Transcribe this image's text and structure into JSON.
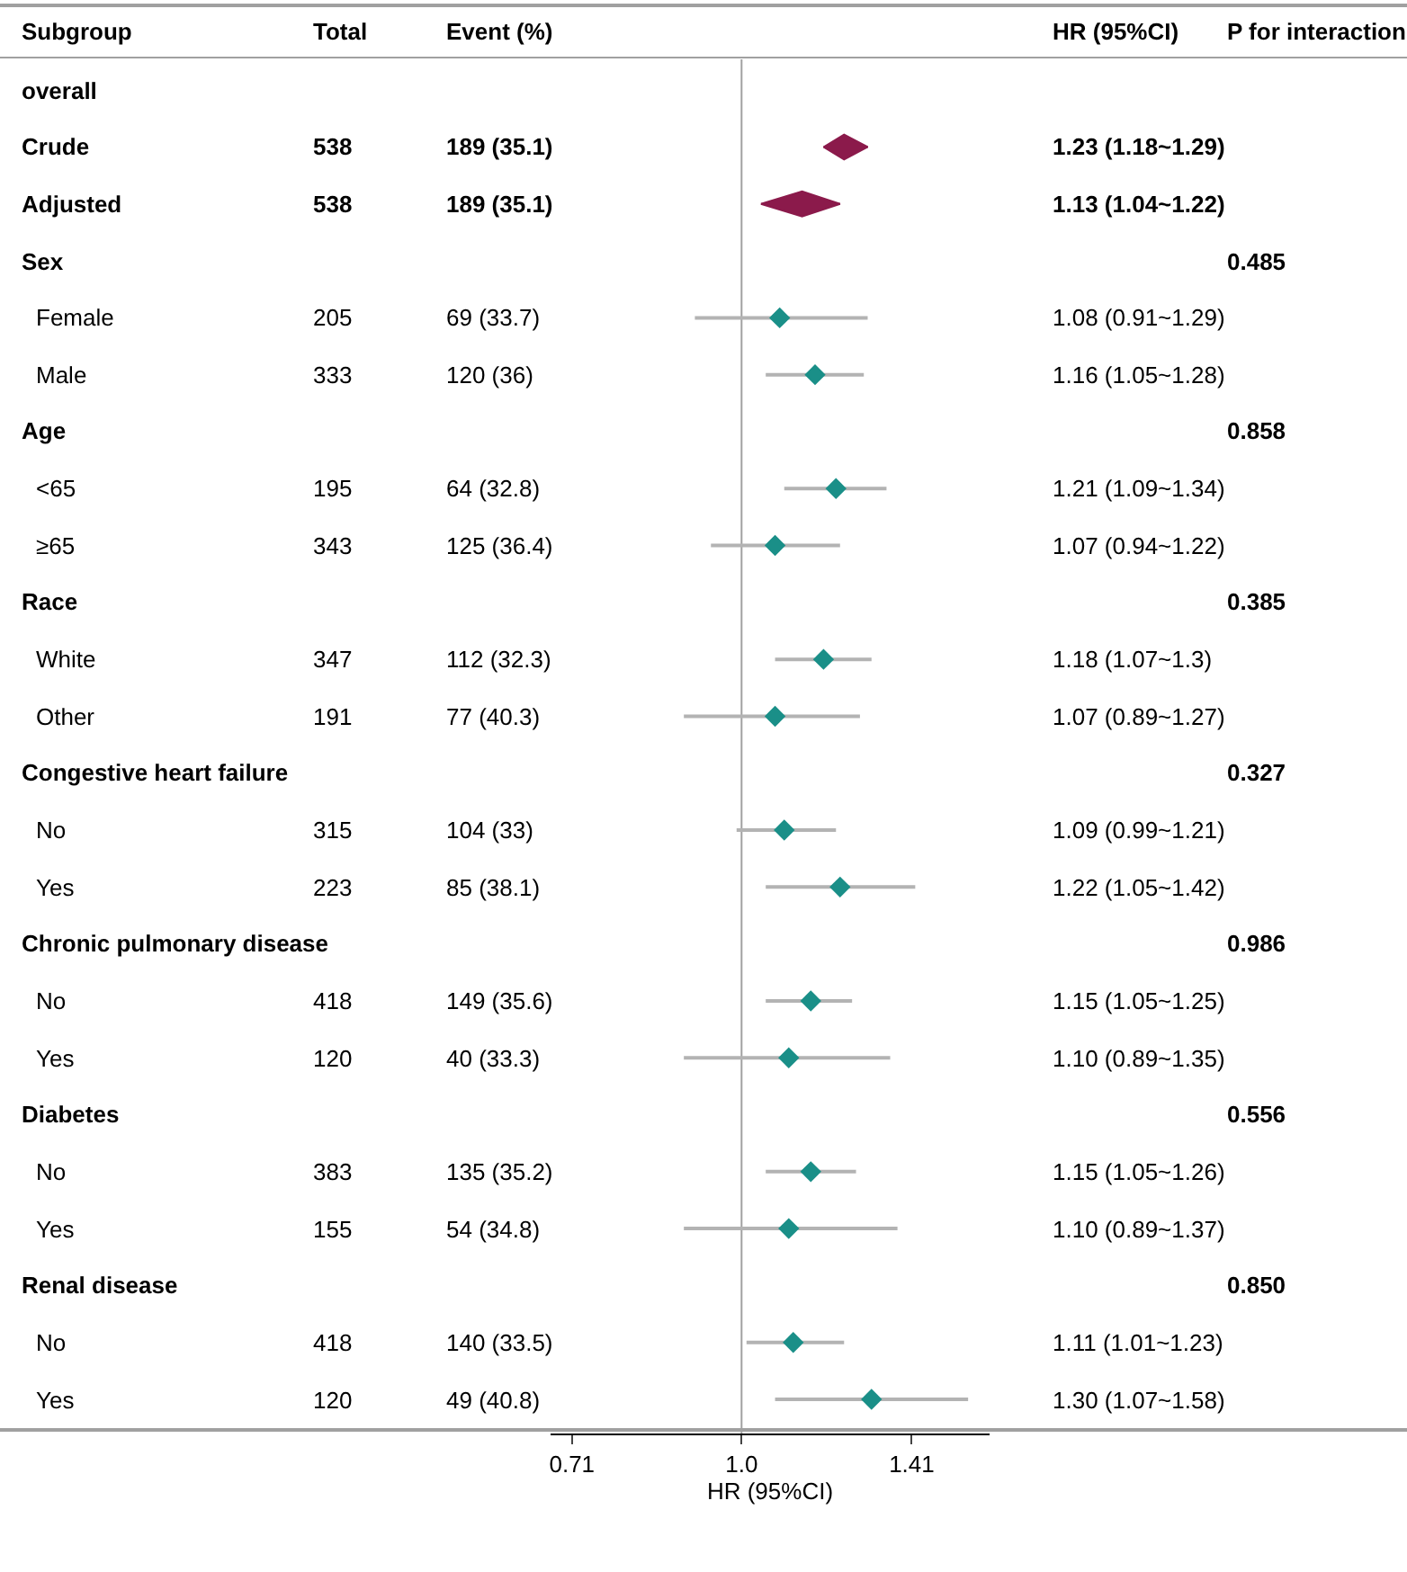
{
  "chart_data": [
    {
      "type": "other",
      "title": "Subgroup",
      "categories": [
        "overall",
        "Crude",
        "Adjusted",
        "Sex",
        "Female",
        "Male",
        "Age",
        "<65",
        "≥65",
        "Race",
        "White",
        "Other",
        "Congestive heart failure",
        "No",
        "Yes",
        "Chronic pulmonary disease",
        "No",
        "Yes",
        "Diabetes",
        "No",
        "Yes",
        "Renal disease",
        "No",
        "Yes"
      ]
    },
    {
      "type": "other",
      "title": "Total",
      "categories": [
        null,
        "538",
        "538",
        null,
        "205",
        "333",
        null,
        "195",
        "343",
        null,
        "347",
        "191",
        null,
        "315",
        "223",
        null,
        "418",
        "120",
        null,
        "383",
        "155",
        null,
        "418",
        "120"
      ]
    },
    {
      "type": "other",
      "title": "Event (%)",
      "categories": [
        null,
        "189 (35.1)",
        "189 (35.1)",
        null,
        "69 (33.7)",
        "120 (36)",
        null,
        "64 (32.8)",
        "125 (36.4)",
        null,
        "112 (32.3)",
        "77 (40.3)",
        null,
        "104 (33)",
        "85 (38.1)",
        null,
        "149 (35.6)",
        "40 (33.3)",
        null,
        "135 (35.2)",
        "54 (34.8)",
        null,
        "140 (33.5)",
        "49 (40.8)"
      ]
    },
    {
      "type": "scatter",
      "orientation": "horizontal",
      "categories": [
        null,
        null,
        null,
        null,
        null,
        null,
        null,
        null,
        null,
        null,
        null,
        null,
        null,
        null,
        null,
        null,
        null,
        null,
        null,
        null,
        null,
        null,
        null,
        null
      ],
      "xlabel": "HR (95%CI)",
      "log": "x",
      "xlim": [
        0.68,
        1.65
      ],
      "xticks": [
        0.71,
        {
          "value": 1,
          "label": "1.0"
        },
        1.41
      ],
      "tick_labels": "x",
      "marker": "diamond",
      "ref_lines": [
        {
          "axis": "x",
          "value": 1,
          "color": "#a0a0a0"
        }
      ],
      "series": [
        {
          "color": "#8b1a4b",
          "values": [
            null,
            1.23,
            1.13,
            null,
            null,
            null,
            null,
            null,
            null,
            null,
            null,
            null,
            null,
            null,
            null,
            null,
            null,
            null,
            null,
            null,
            null,
            null,
            null,
            null
          ],
          "errors": [
            null,
            [
              1.18,
              1.29
            ],
            [
              1.04,
              1.22
            ],
            null,
            null,
            null,
            null,
            null,
            null,
            null,
            null,
            null,
            null,
            null,
            null,
            null,
            null,
            null,
            null,
            null,
            null,
            null,
            null,
            null
          ]
        },
        {
          "color": "#1a8f88",
          "values": [
            null,
            null,
            null,
            null,
            1.08,
            1.16,
            null,
            1.21,
            1.07,
            null,
            1.18,
            1.07,
            null,
            1.09,
            1.22,
            null,
            1.15,
            1.1,
            null,
            1.15,
            1.1,
            null,
            1.11,
            1.3
          ],
          "errors": [
            null,
            null,
            null,
            null,
            [
              0.91,
              1.29
            ],
            [
              1.05,
              1.28
            ],
            null,
            [
              1.09,
              1.34
            ],
            [
              0.94,
              1.22
            ],
            null,
            [
              1.07,
              1.3
            ],
            [
              0.89,
              1.27
            ],
            null,
            [
              0.99,
              1.21
            ],
            [
              1.05,
              1.42
            ],
            null,
            [
              1.05,
              1.25
            ],
            [
              0.89,
              1.35
            ],
            null,
            [
              1.05,
              1.26
            ],
            [
              0.89,
              1.37
            ],
            null,
            [
              1.01,
              1.23
            ],
            [
              1.07,
              1.58
            ]
          ]
        }
      ]
    },
    {
      "type": "other",
      "title": "HR (95%CI)",
      "categories": [
        null,
        "1.23 (1.18~1.29)",
        "1.13 (1.04~1.22)",
        null,
        "1.08 (0.91~1.29)",
        "1.16 (1.05~1.28)",
        null,
        "1.21 (1.09~1.34)",
        "1.07 (0.94~1.22)",
        null,
        "1.18 (1.07~1.3)",
        "1.07 (0.89~1.27)",
        null,
        "1.09 (0.99~1.21)",
        "1.22 (1.05~1.42)",
        null,
        "1.15 (1.05~1.25)",
        "1.10 (0.89~1.35)",
        null,
        "1.15 (1.05~1.26)",
        "1.10 (0.89~1.37)",
        null,
        "1.11 (1.01~1.23)",
        "1.30 (1.07~1.58)"
      ]
    },
    {
      "type": "other",
      "title": "P for interaction",
      "categories": [
        null,
        null,
        null,
        "0.485",
        null,
        null,
        "0.858",
        null,
        null,
        "0.385",
        null,
        null,
        "0.327",
        null,
        null,
        "0.986",
        null,
        null,
        "0.556",
        null,
        null,
        "0.850",
        null,
        null
      ]
    }
  ]
}
